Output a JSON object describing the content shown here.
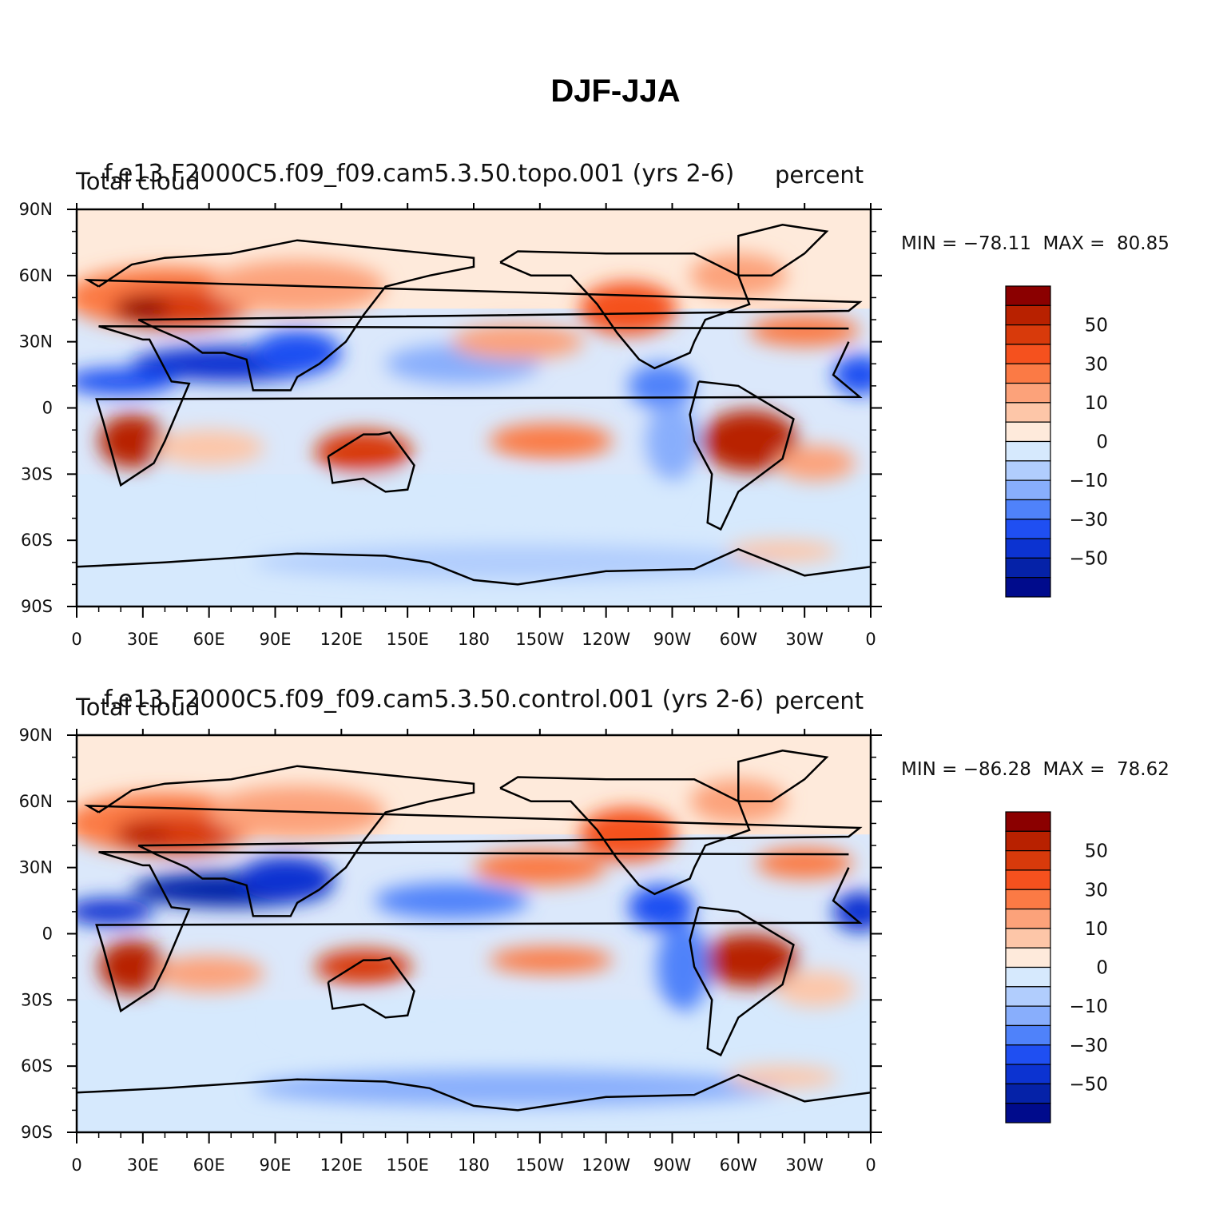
{
  "title": "DJF-JJA",
  "panels": [
    {
      "run_label": "f.e13.F2000C5.f09_f09.cam5.3.50.topo.001 (yrs 2-6)",
      "variable": "Total cloud",
      "units": "percent",
      "min_label": "MIN =",
      "min_value": "−78.11",
      "max_label": "MAX =",
      "max_value": "80.85"
    },
    {
      "run_label": "f.e13.F2000C5.f09_f09.cam5.3.50.control.001 (yrs 2-6)",
      "variable": "Total cloud",
      "units": "percent",
      "min_label": "MIN =",
      "min_value": "−86.28",
      "max_label": "MAX =",
      "max_value": "78.62"
    }
  ],
  "map": {
    "lat_ticks": [
      "90N",
      "60N",
      "30N",
      "0",
      "30S",
      "60S",
      "90S"
    ],
    "lon_ticks": [
      "0",
      "30E",
      "60E",
      "90E",
      "120E",
      "150E",
      "180",
      "150W",
      "120W",
      "90W",
      "60W",
      "30W",
      "0"
    ],
    "projection": "cylindrical equidistant, 0 to 360 longitude"
  },
  "colorbar": {
    "labels": [
      "50",
      "30",
      "10",
      "0",
      "−10",
      "−30",
      "−50"
    ],
    "colors": [
      "#8b0000",
      "#b82100",
      "#d83a0b",
      "#f5511e",
      "#fb7a45",
      "#fca27a",
      "#fdc6a8",
      "#feeadb",
      "#d6e9fd",
      "#b1cdfd",
      "#88aefc",
      "#4f82fa",
      "#1f4ff2",
      "#0c33d1",
      "#0522a8",
      "#000b8c"
    ]
  }
}
